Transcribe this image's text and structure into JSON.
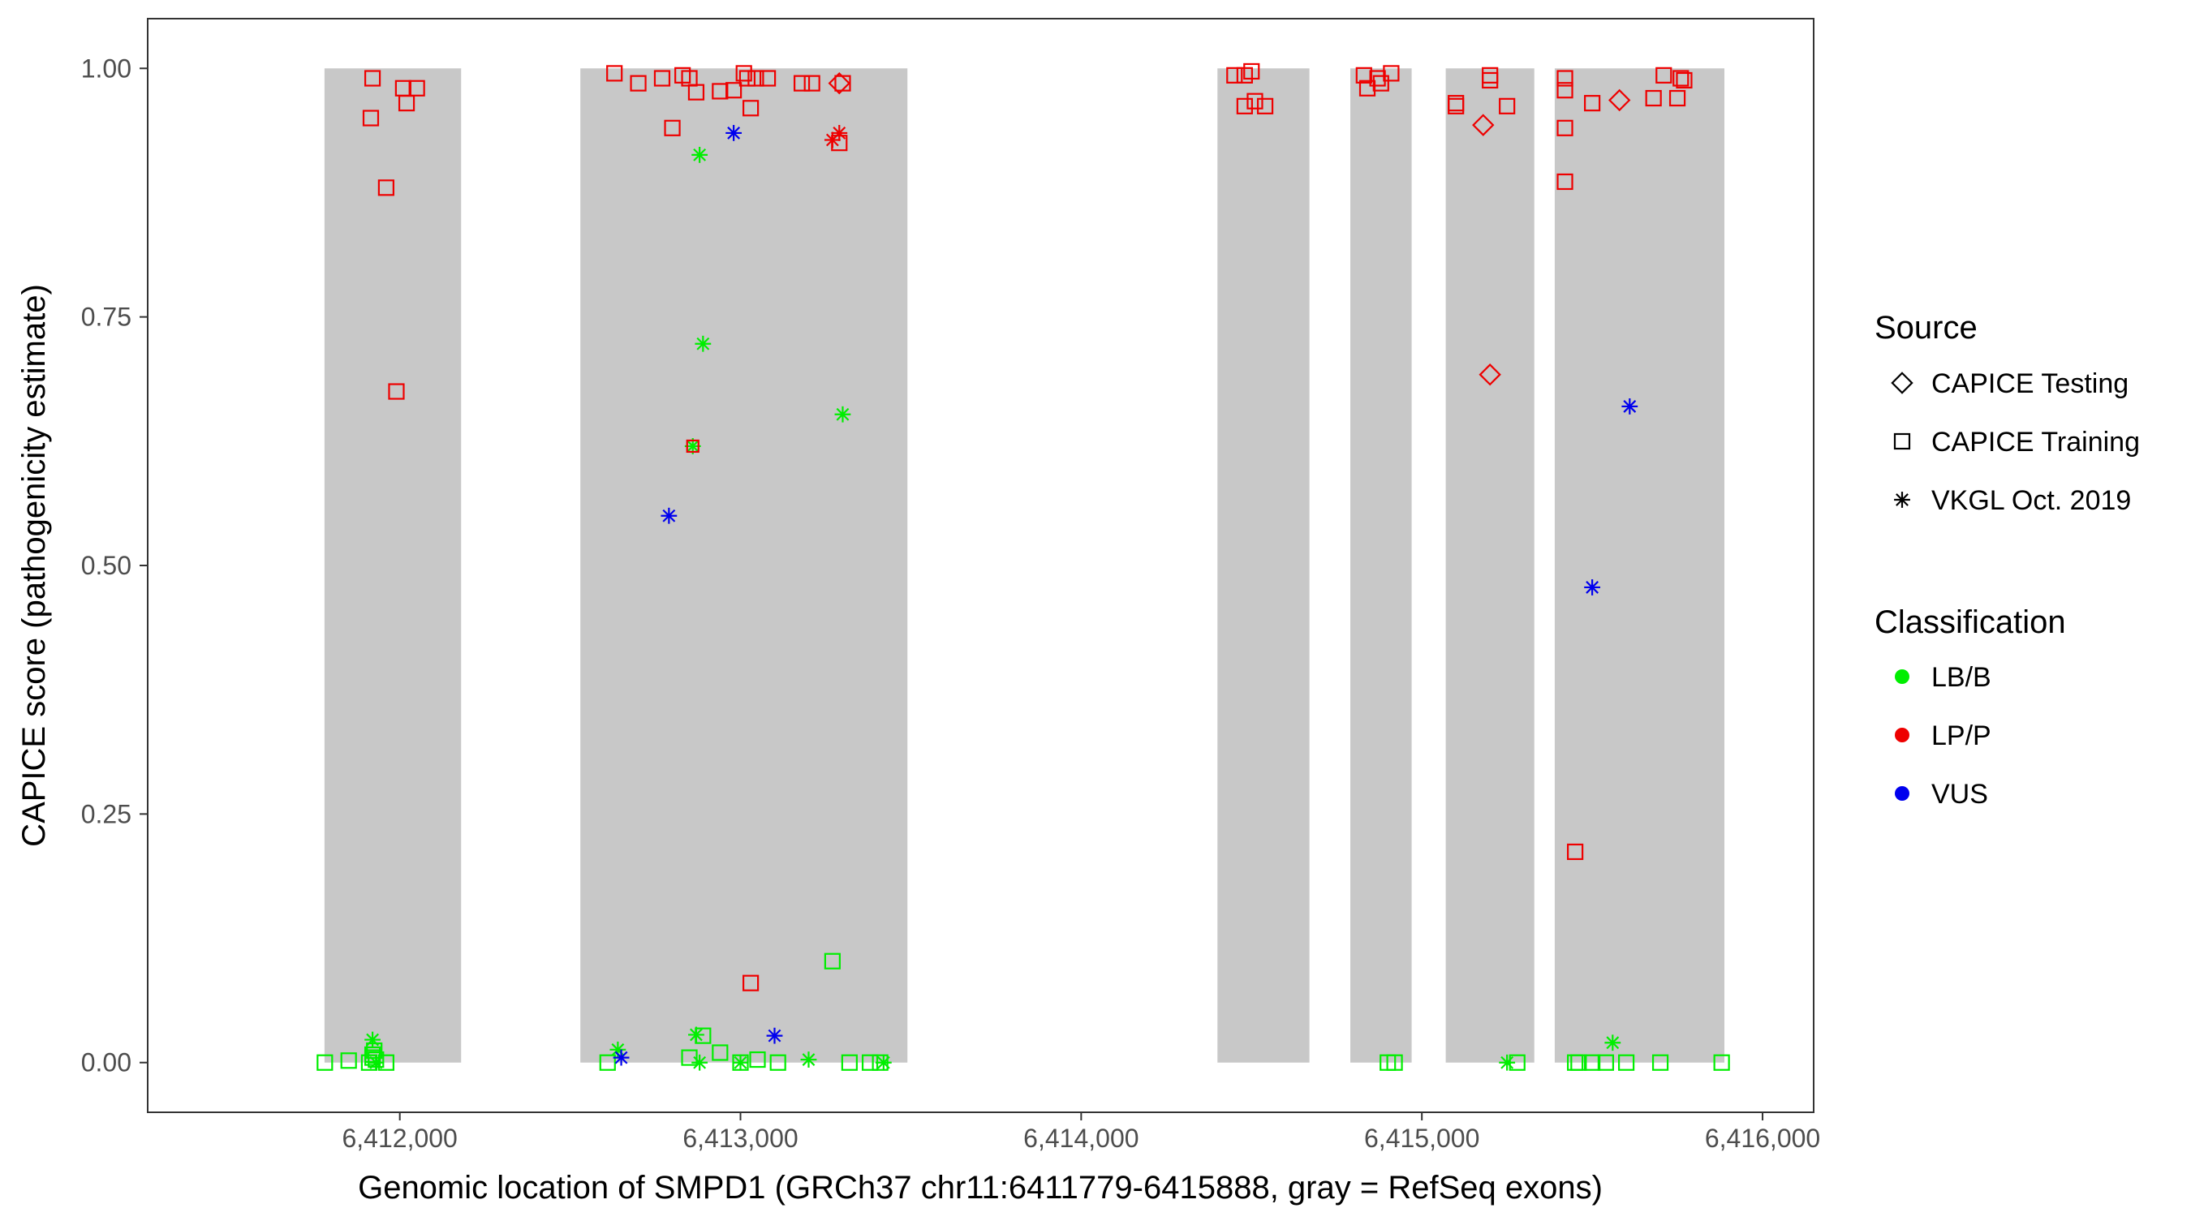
{
  "chart_data": {
    "type": "scatter",
    "title": "",
    "xlabel": "Genomic location of SMPD1 (GRCh37 chr11:6411779-6415888, gray = RefSeq exons)",
    "ylabel": "CAPICE score (pathogenicity estimate)",
    "xlim": [
      6411260,
      6416150
    ],
    "ylim": [
      -0.05,
      1.05
    ],
    "x_ticks": [
      6412000,
      6413000,
      6414000,
      6415000,
      6416000
    ],
    "x_tick_labels": [
      "6,412,000",
      "6,413,000",
      "6,414,000",
      "6,415,000",
      "6,416,000"
    ],
    "y_ticks": [
      0,
      0.25,
      0.5,
      0.75,
      1.0
    ],
    "y_tick_labels": [
      "0.00",
      "0.25",
      "0.50",
      "0.75",
      "1.00"
    ],
    "grid": false,
    "exons": [
      [
        6411779,
        6412180
      ],
      [
        6412530,
        6413490
      ],
      [
        6414400,
        6414670
      ],
      [
        6414790,
        6414970
      ],
      [
        6415070,
        6415330
      ],
      [
        6415390,
        6415888
      ]
    ],
    "exon_color": "#c8c8c8",
    "legend": {
      "placement": "right",
      "source": {
        "title": "Source",
        "items": [
          {
            "label": "CAPICE Testing",
            "shape": "diamond"
          },
          {
            "label": "CAPICE Training",
            "shape": "square"
          },
          {
            "label": "VKGL Oct. 2019",
            "shape": "asterisk"
          }
        ]
      },
      "classification": {
        "title": "Classification",
        "items": [
          {
            "label": "LB/B",
            "color": "#00ee00"
          },
          {
            "label": "LP/P",
            "color": "#ee0000"
          },
          {
            "label": "VUS",
            "color": "#0000ee"
          }
        ]
      }
    },
    "series": [
      {
        "source": "CAPICE Training",
        "classification": "LP/P",
        "points": [
          [
            6411920,
            0.99
          ],
          [
            6411915,
            0.95
          ],
          [
            6411960,
            0.88
          ],
          [
            6411990,
            0.675
          ],
          [
            6412010,
            0.98
          ],
          [
            6412020,
            0.965
          ],
          [
            6412050,
            0.98
          ],
          [
            6412630,
            0.995
          ],
          [
            6412700,
            0.985
          ],
          [
            6412770,
            0.99
          ],
          [
            6412800,
            0.94
          ],
          [
            6412830,
            0.993
          ],
          [
            6412850,
            0.99
          ],
          [
            6412870,
            0.976
          ],
          [
            6412940,
            0.977
          ],
          [
            6412980,
            0.978
          ],
          [
            6413010,
            0.995
          ],
          [
            6413020,
            0.99
          ],
          [
            6413030,
            0.96
          ],
          [
            6413045,
            0.99
          ],
          [
            6413080,
            0.99
          ],
          [
            6413180,
            0.985
          ],
          [
            6413210,
            0.985
          ],
          [
            6413290,
            0.925
          ],
          [
            6413300,
            0.985
          ],
          [
            6413030,
            0.08
          ],
          [
            6414450,
            0.993
          ],
          [
            6414480,
            0.993
          ],
          [
            6414500,
            0.997
          ],
          [
            6414480,
            0.962
          ],
          [
            6414510,
            0.967
          ],
          [
            6414540,
            0.962
          ],
          [
            6414830,
            0.993
          ],
          [
            6414840,
            0.98
          ],
          [
            6414870,
            0.99
          ],
          [
            6414880,
            0.985
          ],
          [
            6414910,
            0.995
          ],
          [
            6415100,
            0.962
          ],
          [
            6415100,
            0.965
          ],
          [
            6415200,
            0.993
          ],
          [
            6415200,
            0.988
          ],
          [
            6415250,
            0.962
          ],
          [
            6415420,
            0.99
          ],
          [
            6415420,
            0.978
          ],
          [
            6415420,
            0.94
          ],
          [
            6415420,
            0.886
          ],
          [
            6415450,
            0.212
          ],
          [
            6415500,
            0.965
          ],
          [
            6415680,
            0.97
          ],
          [
            6415710,
            0.993
          ],
          [
            6415750,
            0.97
          ],
          [
            6415760,
            0.99
          ],
          [
            6415770,
            0.988
          ]
        ]
      },
      {
        "source": "CAPICE Testing",
        "classification": "LP/P",
        "points": [
          [
            6413290,
            0.985
          ],
          [
            6415180,
            0.943
          ],
          [
            6415200,
            0.692
          ],
          [
            6415580,
            0.968
          ]
        ]
      },
      {
        "source": "VKGL Oct. 2019",
        "classification": "LP/P",
        "points": [
          [
            6413270,
            0.928
          ],
          [
            6413290,
            0.935
          ]
        ]
      },
      {
        "source": "CAPICE Training",
        "classification": "LB/B",
        "points": [
          [
            6411780,
            0.0
          ],
          [
            6411850,
            0.002
          ],
          [
            6411910,
            0.0
          ],
          [
            6411920,
            0.005
          ],
          [
            6411930,
            0.003
          ],
          [
            6411920,
            0.008
          ],
          [
            6411925,
            0.012
          ],
          [
            6411960,
            0.0
          ],
          [
            6412610,
            0.0
          ],
          [
            6412850,
            0.005
          ],
          [
            6412890,
            0.027
          ],
          [
            6412940,
            0.01
          ],
          [
            6413000,
            0.0
          ],
          [
            6413050,
            0.003
          ],
          [
            6413110,
            0.0
          ],
          [
            6413270,
            0.102
          ],
          [
            6413320,
            0.0
          ],
          [
            6413380,
            0.0
          ],
          [
            6413410,
            0.0
          ],
          [
            6414900,
            0.0
          ],
          [
            6414920,
            0.0
          ],
          [
            6415280,
            0.0
          ],
          [
            6415450,
            0.0
          ],
          [
            6415460,
            0.0
          ],
          [
            6415500,
            0.0
          ],
          [
            6415540,
            0.0
          ],
          [
            6415600,
            0.0
          ],
          [
            6415700,
            0.0
          ],
          [
            6415880,
            0.0
          ]
        ]
      },
      {
        "source": "VKGL Oct. 2019",
        "classification": "LB/B",
        "points": [
          [
            6411920,
            0.023
          ],
          [
            6411930,
            0.0
          ],
          [
            6412640,
            0.013
          ],
          [
            6412870,
            0.028
          ],
          [
            6412880,
            0.0
          ],
          [
            6412880,
            0.913
          ],
          [
            6412890,
            0.723
          ],
          [
            6412860,
            0.62
          ],
          [
            6413000,
            0.0
          ],
          [
            6413200,
            0.003
          ],
          [
            6413300,
            0.652
          ],
          [
            6413420,
            0.0
          ],
          [
            6415250,
            0.0
          ],
          [
            6415560,
            0.02
          ]
        ]
      },
      {
        "source": "VKGL Oct. 2019",
        "classification": "VUS",
        "points": [
          [
            6412650,
            0.005
          ],
          [
            6412790,
            0.55
          ],
          [
            6412980,
            0.935
          ],
          [
            6413100,
            0.027
          ],
          [
            6415500,
            0.478
          ],
          [
            6415610,
            0.66
          ]
        ]
      }
    ],
    "overlay_points": [
      {
        "source": "CAPICE Training",
        "classification": "LP/P",
        "x": 6412860,
        "y": 0.62
      }
    ]
  }
}
